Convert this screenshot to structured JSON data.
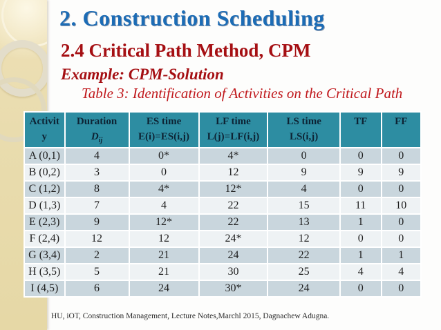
{
  "slide": {
    "title": "2. Construction Scheduling",
    "section_heading": "2.4 Critical Path Method, CPM",
    "example_label": "Example: CPM-Solution",
    "table_caption": "Table 3: Identification of Activities on the Critical Path",
    "footer": "HU, iOT, Construction Management, Lecture Notes,Marchl 2015, Dagnachew Adugna."
  },
  "table": {
    "headers": [
      {
        "lines": [
          "Activit",
          "y"
        ]
      },
      {
        "lines": [
          "Duration"
        ],
        "formula_main": "D",
        "formula_sub": "ij"
      },
      {
        "lines": [
          "ES time",
          "E(i)=ES(i,j)"
        ]
      },
      {
        "lines": [
          "LF time",
          "L(j)=LF(i,j)"
        ]
      },
      {
        "lines": [
          "LS time",
          "LS(i,j)"
        ]
      },
      {
        "lines": [
          "TF"
        ]
      },
      {
        "lines": [
          "FF"
        ]
      }
    ],
    "column_widths_percent": [
      10.2,
      16.2,
      17.6,
      17.4,
      18.2,
      10.4,
      10.0
    ],
    "rows": [
      [
        "A (0,1)",
        "4",
        "0*",
        "4*",
        "0",
        "0",
        "0"
      ],
      [
        "B (0,2)",
        "3",
        "0",
        "12",
        "9",
        "9",
        "9"
      ],
      [
        "C (1,2)",
        "8",
        "4*",
        "12*",
        "4",
        "0",
        "0"
      ],
      [
        "D (1,3)",
        "7",
        "4",
        "22",
        "15",
        "11",
        "10"
      ],
      [
        "E (2,3)",
        "9",
        "12*",
        "22",
        "13",
        "1",
        "0"
      ],
      [
        "F (2,4)",
        "12",
        "12",
        "24*",
        "12",
        "0",
        "0"
      ],
      [
        "G (3,4)",
        "2",
        "21",
        "24",
        "22",
        "1",
        "1"
      ],
      [
        "H (3,5)",
        "5",
        "21",
        "30",
        "25",
        "4",
        "4"
      ],
      [
        "I (4,5)",
        "6",
        "24",
        "30*",
        "24",
        "0",
        "0"
      ]
    ]
  },
  "colors": {
    "header_bg": "#2d8da2",
    "header_text": "#0d2334",
    "row_odd": "#c9d6dd",
    "row_even": "#eef2f4",
    "title_blue": "#1c6cb5",
    "heading_red": "#a50f13",
    "caption_red": "#c0181c",
    "sidebar_beige": "#e9dcae"
  }
}
